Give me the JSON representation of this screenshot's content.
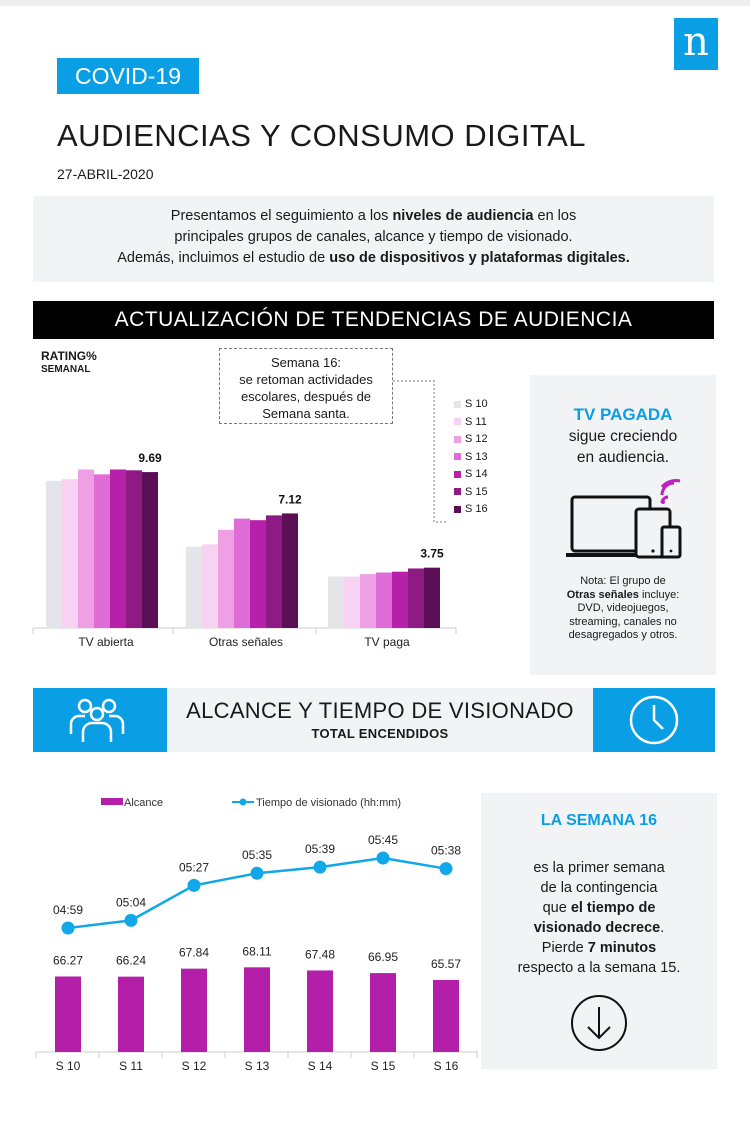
{
  "header": {
    "tag": "COVID-19",
    "title": "AUDIENCIAS Y CONSUMO DIGITAL",
    "date": "27-ABRIL-2020",
    "logo": "n"
  },
  "intro": {
    "l1_a": "Presentamos el seguimiento a los ",
    "l1_b": "niveles de audiencia",
    "l1_c": " en los",
    "l2": "principales grupos de canales, alcance y tiempo de visionado.",
    "l3_a": "Además, incluimos el estudio de ",
    "l3_b": "uso de dispositivos  y plataformas digitales."
  },
  "section1": {
    "title": "ACTUALIZACIÓN DE TENDENCIAS DE AUDIENCIA"
  },
  "rating": {
    "label": "RATING%",
    "sublabel": "SEMANAL"
  },
  "note": {
    "l1": "Semana 16:",
    "l2": "se retoman actividades",
    "l3": "escolares, después de",
    "l4": "Semana santa."
  },
  "side1": {
    "heading": "TV PAGADA",
    "l1": "sigue creciendo",
    "l2": "en audiencia.",
    "n1": "Nota: El grupo de",
    "n2_b": "Otras señales",
    "n2_c": " incluye:",
    "n3": "DVD, videojuegos,",
    "n4": "streaming, canales no",
    "n5": "desagregados y otros.",
    "icon": "devices-wifi-icon"
  },
  "section2": {
    "title": "ALCANCE Y TIEMPO DE VISIONADO",
    "subtitle": "TOTAL ENCENDIDOS",
    "left_icon": "people-icon",
    "right_icon": "clock-icon"
  },
  "side2": {
    "heading": "LA SEMANA 16",
    "l1": "es la primer semana",
    "l2": "de la contingencia",
    "l3_a": "que ",
    "l3_b": "el tiempo de",
    "l4": "visionado decrece",
    "l4_c": ".",
    "l5_a": "Pierde ",
    "l5_b": "7 minutos",
    "l6": "respecto a la semana 15.",
    "icon": "arrow-down-circle-icon"
  },
  "colors": {
    "accent": "#0a9ee4",
    "bar_series": [
      "#e4e5e8",
      "#f7d2f3",
      "#ef9fe4",
      "#e06cd8",
      "#b721a9",
      "#8e1a84",
      "#5b0f56"
    ],
    "alcance": "#b31fa9",
    "tiempo": "#12a7e8"
  },
  "chart_data": [
    {
      "type": "bar",
      "categories": [
        "TV abierta",
        "Otras señales",
        "TV paga"
      ],
      "series": [
        {
          "name": "S 10",
          "values": [
            9.15,
            5.05,
            3.2
          ]
        },
        {
          "name": "S 11",
          "values": [
            9.25,
            5.2,
            3.2
          ]
        },
        {
          "name": "S 12",
          "values": [
            9.85,
            6.1,
            3.35
          ]
        },
        {
          "name": "S 13",
          "values": [
            9.55,
            6.8,
            3.45
          ]
        },
        {
          "name": "S 14",
          "values": [
            9.85,
            6.7,
            3.5
          ]
        },
        {
          "name": "S 15",
          "values": [
            9.8,
            7.0,
            3.7
          ]
        },
        {
          "name": "S 16",
          "values": [
            9.69,
            7.12,
            3.75
          ]
        }
      ],
      "data_labels": {
        "TV abierta": "9.69",
        "Otras señales": "7.12",
        "TV paga": "3.75"
      },
      "ylim": [
        0,
        11
      ],
      "legend": "right"
    },
    {
      "type": "bar",
      "categories": [
        "S 10",
        "S 11",
        "S 12",
        "S 13",
        "S 14",
        "S 15",
        "S 16"
      ],
      "series": [
        {
          "name": "Alcance",
          "values": [
            66.27,
            66.24,
            67.84,
            68.11,
            67.48,
            66.95,
            65.57
          ],
          "labels": [
            "66.27",
            "66.24",
            "67.84",
            "68.11",
            "67.48",
            "66.95",
            "65.57"
          ]
        }
      ],
      "legend": "top"
    },
    {
      "type": "line",
      "categories": [
        "S 10",
        "S 11",
        "S 12",
        "S 13",
        "S 14",
        "S 15",
        "S 16"
      ],
      "series": [
        {
          "name": "Tiempo de visionado (hh:mm)",
          "values": [
            299,
            304,
            327,
            335,
            339,
            345,
            338
          ],
          "labels": [
            "04:59",
            "05:04",
            "05:27",
            "05:35",
            "05:39",
            "05:45",
            "05:38"
          ]
        }
      ],
      "legend": "top"
    }
  ]
}
